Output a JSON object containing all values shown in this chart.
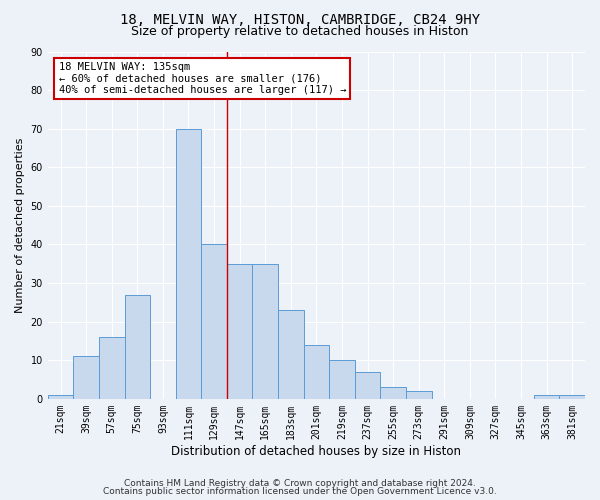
{
  "title1": "18, MELVIN WAY, HISTON, CAMBRIDGE, CB24 9HY",
  "title2": "Size of property relative to detached houses in Histon",
  "xlabel": "Distribution of detached houses by size in Histon",
  "ylabel": "Number of detached properties",
  "categories": [
    "21sqm",
    "39sqm",
    "57sqm",
    "75sqm",
    "93sqm",
    "111sqm",
    "129sqm",
    "147sqm",
    "165sqm",
    "183sqm",
    "201sqm",
    "219sqm",
    "237sqm",
    "255sqm",
    "273sqm",
    "291sqm",
    "309sqm",
    "327sqm",
    "345sqm",
    "363sqm",
    "381sqm"
  ],
  "values": [
    1,
    11,
    16,
    27,
    0,
    70,
    40,
    35,
    35,
    23,
    14,
    10,
    7,
    3,
    2,
    0,
    0,
    0,
    0,
    1,
    1
  ],
  "bar_color": "#c8d9ed",
  "bar_edge_color": "#5b9bd5",
  "ylim": [
    0,
    90
  ],
  "yticks": [
    0,
    10,
    20,
    30,
    40,
    50,
    60,
    70,
    80,
    90
  ],
  "annotation_line1": "18 MELVIN WAY: 135sqm",
  "annotation_line2": "← 60% of detached houses are smaller (176)",
  "annotation_line3": "40% of semi-detached houses are larger (117) →",
  "annotation_box_color": "#ffffff",
  "annotation_border_color": "#cc0000",
  "vline_x": 6.5,
  "footer1": "Contains HM Land Registry data © Crown copyright and database right 2024.",
  "footer2": "Contains public sector information licensed under the Open Government Licence v3.0.",
  "background_color": "#edf2f9",
  "grid_color": "#ffffff",
  "title1_fontsize": 10,
  "title2_fontsize": 9,
  "xlabel_fontsize": 8.5,
  "ylabel_fontsize": 8,
  "tick_fontsize": 7,
  "annotation_fontsize": 7.5,
  "footer_fontsize": 6.5
}
